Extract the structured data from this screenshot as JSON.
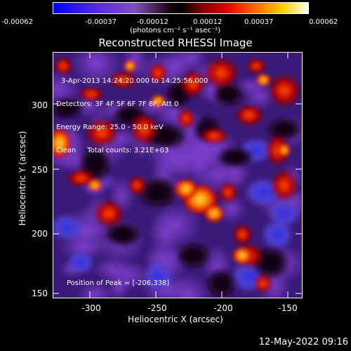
{
  "colorbar": {
    "tick_labels": [
      "-0.00062",
      "-0.00037",
      "-0.00012",
      "0.00012",
      "0.00037",
      "0.00062"
    ],
    "units": "(photons cm⁻² s⁻¹ asec⁻²)"
  },
  "title": "Reconstructed RHESSI Image",
  "info": {
    "line1": "3-Apr-2013 14:24:20.000 to 14:25:56.000",
    "line2": "Detectors: 3F 4F 5F 6F 7F 8F, Att 0",
    "line3": "Energy Range: 25.0 - 50.0 keV",
    "line4": "Clean     Total counts: 3.21E+03"
  },
  "peak": "Position of Peak = [-206,338]",
  "xaxis": {
    "label": "Heliocentric X (arcsec)",
    "ticks": [
      "-300",
      "-250",
      "-200",
      "-150"
    ]
  },
  "yaxis": {
    "label": "Heliocentric Y (arcsec)",
    "ticks": [
      "300",
      "250",
      "200",
      "150"
    ]
  },
  "footer_timestamp": "12-May-2022 09:16",
  "colors": {
    "background": "#000000",
    "colormap": [
      "#1010e0",
      "#5050e0",
      "#7a3ec0",
      "#6a30a8",
      "#402080",
      "#200828",
      "#000000",
      "#5a0000",
      "#c00000",
      "#ff3000",
      "#ff8000",
      "#ffc000",
      "#ffffff"
    ]
  }
}
